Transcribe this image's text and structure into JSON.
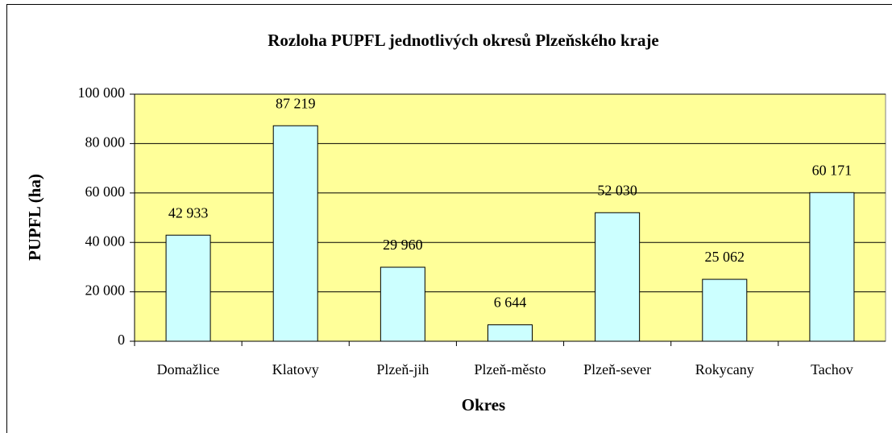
{
  "chart_data": {
    "type": "bar",
    "title": "Rozloha PUPFL jednotlivých okresů Plzeňského kraje",
    "x_label": "Okres",
    "y_label": "PUPFL (ha)",
    "categories": [
      "Domažlice",
      "Klatovy",
      "Plzeň-jih",
      "Plzeň-město",
      "Plzeň-sever",
      "Rokycany",
      "Tachov"
    ],
    "values": [
      42933,
      87219,
      29960,
      6644,
      52030,
      25062,
      60171
    ],
    "value_labels": [
      "42 933",
      "87 219",
      "29 960",
      "6 644",
      "52 030",
      "25 062",
      "60 171"
    ],
    "color": "#ccffff",
    "ylim": [
      0,
      100000
    ],
    "yticks": [
      0,
      {
        "value": 20000,
        "label": "20 000"
      },
      {
        "value": 40000,
        "label": "40 000"
      },
      {
        "value": 60000,
        "label": "60 000"
      },
      {
        "value": 80000,
        "label": "80 000"
      },
      {
        "value": 100000,
        "label": "100 000"
      }
    ],
    "grid": true
  }
}
